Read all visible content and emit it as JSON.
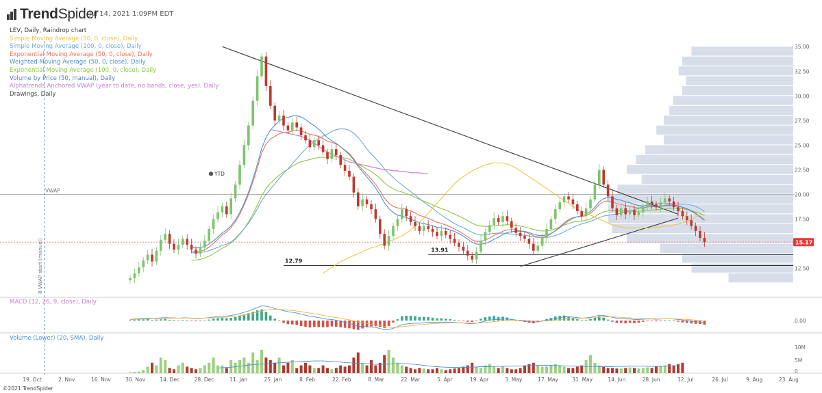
{
  "header": {
    "brand_prefix": "Trend",
    "brand_suffix": "Spider",
    "timestamp": "Jul 14, 2021 1:09PM EDT"
  },
  "footer": {
    "copyright": "©2021 TrendSpider"
  },
  "colors": {
    "sma50": "#f5c242",
    "sma100": "#6fa8d6",
    "ema50": "#e8735a",
    "wma50": "#4a90d9",
    "ema100": "#8cc63f",
    "vbp": "#5a7bb5",
    "vwap": "#c77dcc",
    "drawings": "#444444",
    "up": "#7dc56b",
    "down": "#c0392b",
    "price_tag": "#e53935",
    "volume_profile": "#c9d3e3"
  },
  "chart_data": [
    {
      "type": "candlestick",
      "title": "LEV, Daily, Raindrop chart",
      "legend": [
        {
          "label": "Simple Moving Average (50, 0, close), Daily",
          "color": "#f5c242"
        },
        {
          "label": "Simple Moving Average (100, 0, close), Daily",
          "color": "#6fa8d6"
        },
        {
          "label": "Exponential Moving Average (50, 0, close), Daily",
          "color": "#e8735a"
        },
        {
          "label": "Weighted Moving Average (50, 0, close), Daily",
          "color": "#4a90d9"
        },
        {
          "label": "Exponential Moving Average (100, 0, close), Daily",
          "color": "#8cc63f"
        },
        {
          "label": "Volume by Price (50, manual), Daily",
          "color": "#5a7bb5"
        },
        {
          "label": "Alphatrends Anchored VWAP (year to date, no bands, close, yes), Daily",
          "color": "#c77dcc"
        },
        {
          "label": "Drawings, Daily",
          "color": "#444444"
        }
      ],
      "x_ticks": [
        "19. Oct",
        "2. Nov",
        "16. Nov",
        "30. Nov",
        "14. Dec",
        "28. Dec",
        "11. Jan",
        "25. Jan",
        "8. Feb",
        "22. Feb",
        "8. Mar",
        "22. Mar",
        "5. Apr",
        "19. Apr",
        "3. May",
        "17. May",
        "31. May",
        "14. Jun",
        "28. Jun",
        "12. Jul",
        "26. Jul",
        "9. Aug",
        "23. Aug"
      ],
      "y_ticks": [
        "35.00",
        "32.50",
        "30.00",
        "27.50",
        "25.00",
        "22.50",
        "20.00",
        "17.50",
        "15.00",
        "12.50"
      ],
      "ylim": [
        11.3,
        35.5
      ],
      "last_price": "15.17",
      "annotations": {
        "vwap_label": "VWAP",
        "vwap_anchor_label": "8 VWAP start (manual)",
        "ytd_label": "YTD",
        "level_1": "13.91",
        "level_2": "12.79"
      },
      "levels": [
        13.91,
        12.79
      ],
      "vwap_level": 20.0,
      "close": [
        11.5,
        12.0,
        12.6,
        13.3,
        13.9,
        13.2,
        14.3,
        15.4,
        16.0,
        15.0,
        14.4,
        14.9,
        15.5,
        14.9,
        14.4,
        14.0,
        14.6,
        15.3,
        16.5,
        17.5,
        18.2,
        18.8,
        18.0,
        19.6,
        21.0,
        23.0,
        25.0,
        27.0,
        29.5,
        32.0,
        34.0,
        31.0,
        29.0,
        27.5,
        28.0,
        27.0,
        26.5,
        27.3,
        26.8,
        26.0,
        25.5,
        24.8,
        25.5,
        25.0,
        24.3,
        23.6,
        24.6,
        24.0,
        23.0,
        22.4,
        21.8,
        20.2,
        18.8,
        19.5,
        19.0,
        18.5,
        17.5,
        16.0,
        14.8,
        15.8,
        16.8,
        17.5,
        18.5,
        17.8,
        17.2,
        16.8,
        16.3,
        16.8,
        16.5,
        16.2,
        15.8,
        16.3,
        15.9,
        15.5,
        15.1,
        14.7,
        14.3,
        13.8,
        13.4,
        14.2,
        15.3,
        16.2,
        16.9,
        17.6,
        17.2,
        17.8,
        17.3,
        16.6,
        16.1,
        15.8,
        15.5,
        15.0,
        14.3,
        14.8,
        15.6,
        16.5,
        17.5,
        18.5,
        19.2,
        19.8,
        19.5,
        19.0,
        18.3,
        17.8,
        18.6,
        19.5,
        21.0,
        22.5,
        21.0,
        19.8,
        18.6,
        17.9,
        18.6,
        18.0,
        18.4,
        17.9,
        18.2,
        18.7,
        19.3,
        19.0,
        18.7,
        19.2,
        19.6,
        19.3,
        18.7,
        18.3,
        17.8,
        17.4,
        16.8,
        16.3,
        15.6,
        15.17
      ],
      "sma50": [
        12.0,
        12.3,
        12.6,
        12.9,
        13.2,
        13.4,
        13.6,
        13.8,
        14.0,
        14.2,
        14.4,
        14.6,
        14.7,
        14.9,
        15.0,
        15.2,
        15.4,
        15.6,
        15.8,
        16.1,
        16.4,
        16.8,
        17.2,
        17.6,
        18.1,
        18.6,
        19.1,
        19.6,
        20.1,
        20.6,
        21.1,
        21.5,
        21.8,
        22.1,
        22.4,
        22.6,
        22.8,
        23.0,
        23.1,
        23.2,
        23.2,
        23.2,
        23.1,
        22.9,
        22.7,
        22.4,
        22.1,
        21.8,
        21.5,
        21.2,
        20.9,
        20.6,
        20.3,
        20.0,
        19.7,
        19.4,
        19.1,
        18.8,
        18.5,
        18.3,
        18.1,
        17.9,
        17.7,
        17.5,
        17.3,
        17.1,
        16.9,
        16.8,
        16.7,
        16.6,
        16.6,
        16.6,
        16.6,
        16.6,
        16.6,
        16.6,
        16.7,
        16.7,
        16.8,
        16.8,
        16.9,
        17.0,
        17.1,
        17.3,
        17.5,
        17.7,
        17.9,
        18.0
      ],
      "sma50_start": 44,
      "vwap_line": [
        26.6,
        26.5,
        26.4,
        26.3,
        26.2,
        26.1,
        26.0,
        25.9,
        25.7,
        25.5,
        25.2,
        24.9,
        24.6,
        24.3,
        24.1,
        23.9,
        23.7,
        23.5,
        23.3,
        23.2,
        23.1,
        23.0,
        22.9,
        22.8,
        22.7,
        22.6,
        22.5,
        22.5,
        22.4,
        22.4,
        22.3,
        22.3,
        22.2,
        22.2,
        22.2,
        22.1,
        22.1
      ],
      "vwap_start": 32,
      "volume_profile": [
        {
          "price": 34.5,
          "length": 0.55
        },
        {
          "price": 33.5,
          "length": 0.6
        },
        {
          "price": 32.5,
          "length": 0.62
        },
        {
          "price": 31.5,
          "length": 0.58
        },
        {
          "price": 30.5,
          "length": 0.6
        },
        {
          "price": 29.5,
          "length": 0.65
        },
        {
          "price": 28.5,
          "length": 0.67
        },
        {
          "price": 27.5,
          "length": 0.7
        },
        {
          "price": 26.5,
          "length": 0.74
        },
        {
          "price": 25.5,
          "length": 0.7
        },
        {
          "price": 24.5,
          "length": 0.8
        },
        {
          "price": 23.5,
          "length": 0.85
        },
        {
          "price": 22.5,
          "length": 0.9
        },
        {
          "price": 21.5,
          "length": 0.82
        },
        {
          "price": 20.5,
          "length": 0.95
        },
        {
          "price": 19.5,
          "length": 1.0
        },
        {
          "price": 18.5,
          "length": 1.0
        },
        {
          "price": 17.5,
          "length": 1.0
        },
        {
          "price": 16.5,
          "length": 0.98
        },
        {
          "price": 15.5,
          "length": 0.9
        },
        {
          "price": 14.5,
          "length": 0.72
        },
        {
          "price": 13.5,
          "length": 0.6
        },
        {
          "price": 12.5,
          "length": 0.55
        },
        {
          "price": 11.5,
          "length": 0.35
        }
      ],
      "trendlines": [
        {
          "name": "resistance",
          "from": [
            21,
            35.0
          ],
          "to": [
            125,
            18.0
          ]
        },
        {
          "name": "support",
          "from": [
            89,
            12.7
          ],
          "to": [
            125,
            17.6
          ]
        }
      ]
    },
    {
      "type": "line",
      "title": "MACD (12, 26, 9, close), Daily",
      "y_ticks": [
        "0.00"
      ],
      "macd": [
        0.2,
        0.3,
        0.35,
        0.4,
        0.45,
        0.4,
        0.45,
        0.5,
        0.55,
        0.5,
        0.5,
        0.45,
        0.5,
        0.5,
        0.45,
        0.4,
        0.4,
        0.45,
        0.55,
        0.65,
        0.75,
        0.85,
        0.85,
        0.95,
        1.1,
        1.3,
        1.55,
        1.8,
        2.1,
        2.45,
        2.75,
        2.7,
        2.5,
        2.25,
        2.05,
        1.85,
        1.65,
        1.55,
        1.4,
        1.2,
        1.0,
        0.8,
        0.7,
        0.55,
        0.4,
        0.25,
        0.2,
        0.05,
        -0.15,
        -0.35,
        -0.55,
        -0.8,
        -1.05,
        -1.1,
        -1.15,
        -1.2,
        -1.3,
        -1.5,
        -1.75,
        -1.7,
        -1.45,
        -1.15,
        -0.8,
        -0.65,
        -0.55,
        -0.5,
        -0.5,
        -0.4,
        -0.35,
        -0.35,
        -0.35,
        -0.3,
        -0.3,
        -0.3,
        -0.35,
        -0.4,
        -0.45,
        -0.55,
        -0.6,
        -0.5,
        -0.3,
        -0.1,
        0.05,
        0.2,
        0.2,
        0.3,
        0.3,
        0.2,
        0.1,
        0.0,
        -0.1,
        -0.2,
        -0.3,
        -0.25,
        -0.1,
        0.05,
        0.2,
        0.4,
        0.55,
        0.7,
        0.7,
        0.65,
        0.55,
        0.45,
        0.5,
        0.6,
        0.8,
        1.0,
        0.95,
        0.8,
        0.6,
        0.45,
        0.4,
        0.3,
        0.3,
        0.2,
        0.2,
        0.25,
        0.3,
        0.3,
        0.25,
        0.3,
        0.35,
        0.35,
        0.3,
        0.2,
        0.1,
        0.0,
        -0.1,
        -0.2,
        -0.3,
        -0.45
      ],
      "signal": [
        0.15,
        0.2,
        0.25,
        0.3,
        0.33,
        0.35,
        0.37,
        0.4,
        0.42,
        0.44,
        0.45,
        0.45,
        0.46,
        0.47,
        0.47,
        0.46,
        0.45,
        0.45,
        0.47,
        0.5,
        0.55,
        0.61,
        0.66,
        0.72,
        0.8,
        0.9,
        1.03,
        1.18,
        1.36,
        1.58,
        1.8,
        1.96,
        2.07,
        2.1,
        2.09,
        2.04,
        1.96,
        1.88,
        1.78,
        1.67,
        1.54,
        1.39,
        1.25,
        1.11,
        0.97,
        0.82,
        0.7,
        0.57,
        0.43,
        0.27,
        0.11,
        -0.07,
        -0.26,
        -0.43,
        -0.57,
        -0.7,
        -0.82,
        -0.96,
        -1.12,
        -1.24,
        -1.29,
        -1.26,
        -1.17,
        -1.06,
        -0.96,
        -0.87,
        -0.8,
        -0.72,
        -0.65,
        -0.59,
        -0.54,
        -0.49,
        -0.45,
        -0.42,
        -0.41,
        -0.41,
        -0.42,
        -0.45,
        -0.48,
        -0.48,
        -0.45,
        -0.38,
        -0.29,
        -0.19,
        -0.11,
        -0.03,
        0.04,
        0.07,
        0.08,
        0.06,
        0.03,
        -0.02,
        -0.07,
        -0.11,
        -0.11,
        -0.08,
        -0.02,
        0.06,
        0.16,
        0.27,
        0.36,
        0.42,
        0.44,
        0.44,
        0.45,
        0.48,
        0.54,
        0.63,
        0.7,
        0.72,
        0.7,
        0.65,
        0.6,
        0.54,
        0.49,
        0.43,
        0.38,
        0.36,
        0.35,
        0.34,
        0.32,
        0.32,
        0.32,
        0.33,
        0.32,
        0.3,
        0.26,
        0.21,
        0.15,
        0.08,
        0.0,
        -0.09
      ]
    },
    {
      "type": "bar",
      "title": "Volume (Lower) (20, SMA), Daily",
      "y_ticks": [
        "10M",
        "5M",
        "0"
      ],
      "ylim": [
        0,
        12
      ],
      "volume": [
        0.3,
        0.5,
        0.6,
        1.2,
        2.5,
        4,
        3,
        6,
        5,
        2,
        1.5,
        3,
        4,
        2.5,
        2,
        1.5,
        2,
        3,
        4,
        6,
        3,
        3,
        2,
        5,
        4,
        5,
        6,
        4,
        8,
        5,
        9,
        6,
        5,
        4,
        6,
        3,
        4,
        5,
        2,
        3,
        4,
        3,
        2,
        2,
        3,
        2,
        1.5,
        2,
        3,
        2.5,
        3,
        6,
        8,
        4,
        3,
        5,
        3,
        4,
        7,
        9,
        6,
        4,
        3,
        2.5,
        2,
        1.5,
        2,
        1.8,
        1.5,
        1.5,
        2,
        1.5,
        1.2,
        1.5,
        1.8,
        2,
        2.5,
        3,
        4,
        2.5,
        2,
        3,
        3.5,
        2.5,
        2,
        2.5,
        2,
        1.5,
        1.5,
        2,
        3,
        3.5,
        4,
        3,
        2.5,
        2.5,
        3,
        3.5,
        3,
        2.5,
        2,
        2,
        2.5,
        3,
        5,
        7,
        4,
        3,
        2.5,
        2,
        2,
        1.8,
        1.8,
        2,
        2.2,
        2,
        1.8,
        2,
        2.2,
        2,
        2.5,
        2.8,
        3,
        3.5,
        3,
        3.5,
        4
      ],
      "volume_sma": [
        2.0,
        2.1,
        2.2,
        2.3,
        2.5,
        2.7,
        2.9,
        3.1,
        3.3,
        3.4,
        3.5,
        3.6,
        3.8,
        3.9,
        4.0,
        4.1,
        4.2,
        4.3,
        4.4,
        4.5,
        4.6,
        4.6,
        4.7,
        4.7,
        4.7,
        4.6,
        4.5,
        4.4,
        4.3,
        4.1,
        4.0,
        3.9,
        3.8,
        3.7,
        3.6,
        3.5,
        3.4,
        3.4,
        3.4,
        3.5,
        3.6,
        3.7,
        3.7,
        3.6,
        3.5,
        3.4,
        3.2,
        3.0,
        2.8,
        2.6,
        2.5,
        2.4,
        2.3,
        2.2,
        2.2,
        2.2,
        2.2,
        2.3,
        2.3,
        2.4,
        2.5,
        2.5,
        2.5,
        2.6,
        2.6,
        2.6,
        2.7,
        2.7,
        2.7,
        2.8,
        2.8,
        2.9,
        2.9,
        3.0,
        3.0,
        3.0,
        3.0,
        2.9,
        2.9,
        2.8,
        2.8,
        2.7,
        2.7,
        2.6,
        2.6,
        2.6,
        2.6,
        2.5,
        2.5,
        2.5,
        2.5,
        2.6,
        2.6,
        2.6,
        2.7,
        2.7,
        2.7,
        2.7,
        2.6,
        2.6,
        2.6,
        2.6,
        2.7,
        2.7,
        2.7,
        2.8
      ]
    }
  ]
}
